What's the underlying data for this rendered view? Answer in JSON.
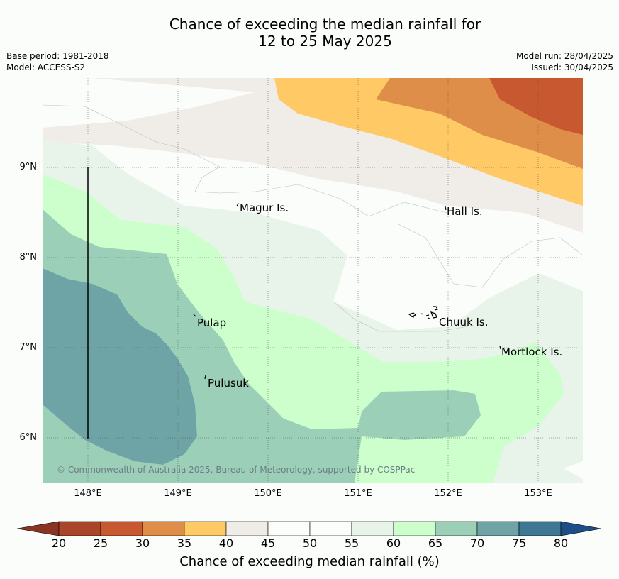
{
  "header": {
    "title_line1": "Chance of exceeding the median rainfall for",
    "title_line2": "12 to 25 May 2025",
    "base_period": "Base period: 1981-2018",
    "model": "Model: ACCESS-S2",
    "model_run": "Model run: 28/04/2025",
    "issued": "Issued: 30/04/2025"
  },
  "map": {
    "latitude_labels": [
      "9°N",
      "8°N",
      "7°N",
      "6°N"
    ],
    "longitude_labels": [
      "148°E",
      "149°E",
      "150°E",
      "151°E",
      "152°E",
      "153°E"
    ],
    "places": [
      {
        "name": "Magur Is."
      },
      {
        "name": "Hall Is."
      },
      {
        "name": "Pulap"
      },
      {
        "name": "Chuuk Is."
      },
      {
        "name": "Mortlock Is."
      },
      {
        "name": "Pulusuk"
      }
    ],
    "copyright": "© Commonwealth of Australia 2025, Bureau of Meteorology, supported by COSPPac"
  },
  "colorbar": {
    "ticks": [
      "20",
      "25",
      "30",
      "35",
      "40",
      "45",
      "50",
      "55",
      "60",
      "65",
      "70",
      "75",
      "80"
    ],
    "colors": [
      "#a8452a",
      "#c8582f",
      "#de8e48",
      "#ffc966",
      "#f0ece7",
      "#fbfdfa",
      "#fbfdfa",
      "#e8f4ea",
      "#ccffcc",
      "#9ccfb8",
      "#6fa4a7",
      "#3f7893"
    ],
    "under_color": "#8a3522",
    "over_color": "#1d4e87",
    "label": "Chance of exceeding median rainfall (%)"
  }
}
